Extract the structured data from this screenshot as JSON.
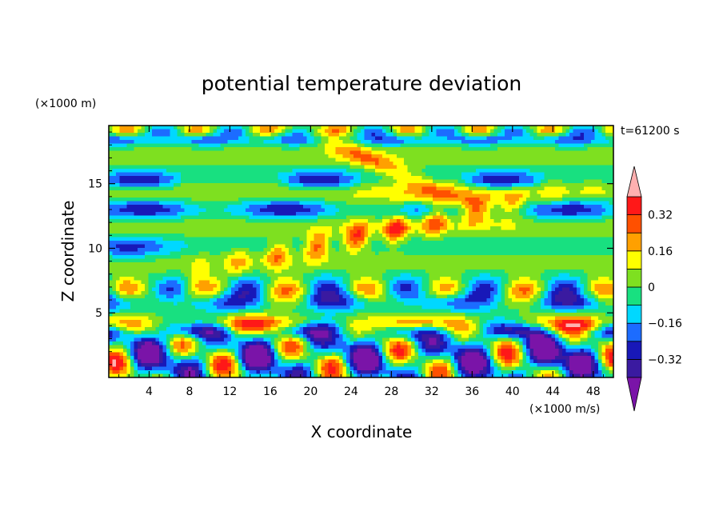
{
  "chart_data": {
    "type": "heatmap",
    "title": "potential temperature deviation",
    "xlabel": "X coordinate",
    "ylabel": "Z coordinate",
    "x_unit": "(×1000 m/s)",
    "y_unit": "(×1000 m)",
    "time_label": "t=61200 s",
    "xlim": [
      0,
      50
    ],
    "ylim": [
      0,
      19.5
    ],
    "x_ticks": [
      4,
      8,
      12,
      16,
      20,
      24,
      28,
      32,
      36,
      40,
      44,
      48
    ],
    "y_ticks": [
      5,
      10,
      15
    ],
    "colorbar": {
      "levels": [
        -0.4,
        -0.32,
        -0.24,
        -0.16,
        -0.08,
        0,
        0.08,
        0.16,
        0.24,
        0.32,
        0.4
      ],
      "tick_labels": [
        "0.32",
        "0.16",
        "0",
        "−0.16",
        "−0.32"
      ],
      "tick_values": [
        0.32,
        0.16,
        0,
        -0.16,
        -0.32
      ],
      "colors": [
        "#7a14a8",
        "#3a1aa0",
        "#1818b8",
        "#1c6cff",
        "#00d8ff",
        "#18e080",
        "#7ee020",
        "#ffff00",
        "#ffa000",
        "#ff5000",
        "#ff1818",
        "#ffb0b0"
      ]
    }
  }
}
